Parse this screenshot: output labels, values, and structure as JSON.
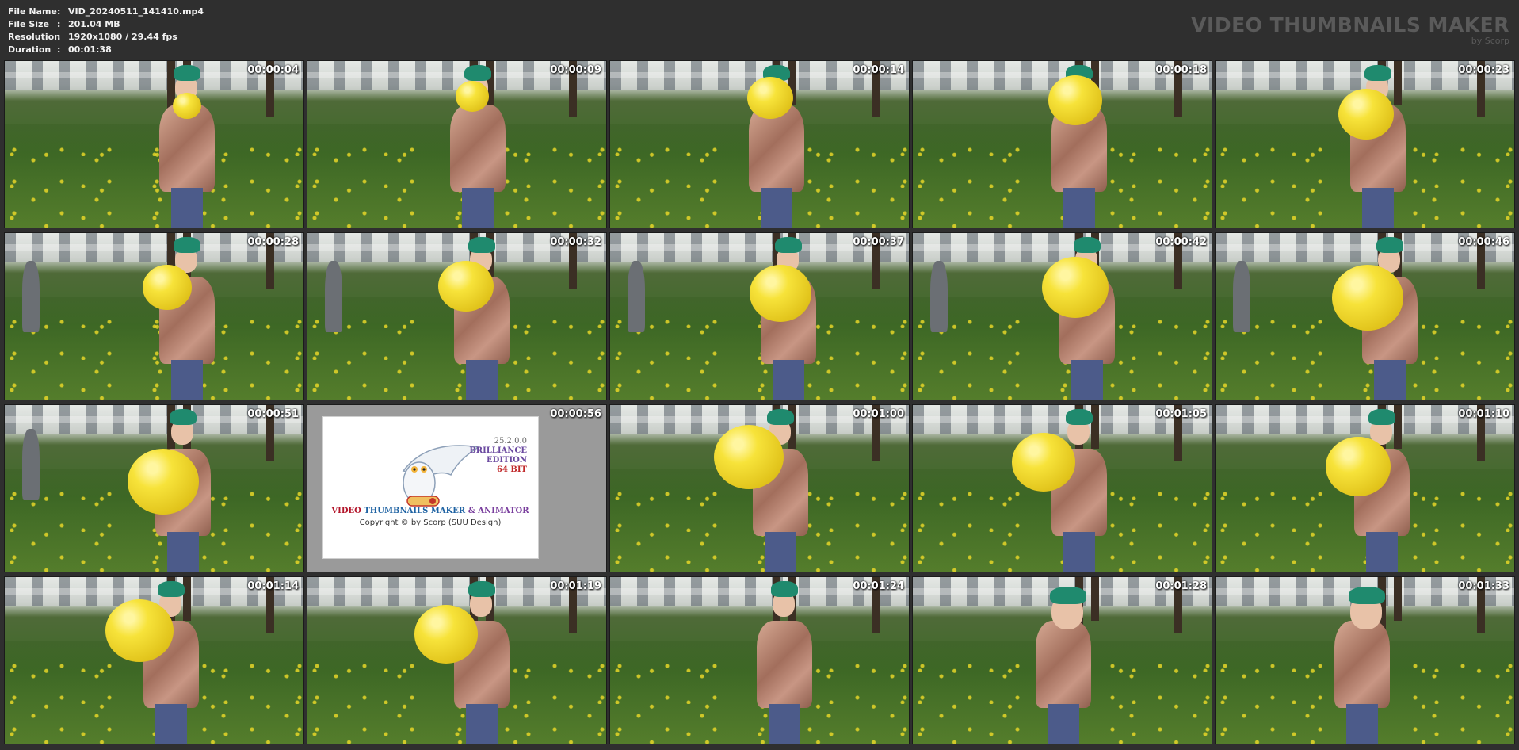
{
  "info": {
    "file_name": {
      "label": "File Name",
      "value": "VID_20240511_141410.mp4"
    },
    "file_size": {
      "label": "File Size",
      "value": "201.04 MB"
    },
    "resolution": {
      "label": "Resolution",
      "value": "1920x1080 / 29.44 fps"
    },
    "duration": {
      "label": "Duration",
      "value": "00:01:38"
    },
    "separator": ":"
  },
  "brand": {
    "title": "VIDEO THUMBNAILS MAKER",
    "subtitle": "by Scorp"
  },
  "timestamps": [
    "00:00:04",
    "00:00:09",
    "00:00:14",
    "00:00:18",
    "00:00:23",
    "00:00:28",
    "00:00:32",
    "00:00:37",
    "00:00:42",
    "00:00:46",
    "00:00:51",
    "00:00:56",
    "00:01:00",
    "00:01:05",
    "00:01:10",
    "00:01:14",
    "00:01:19",
    "00:01:24",
    "00:01:28",
    "00:01:33"
  ],
  "logo": {
    "version": "25.2.0.0",
    "edition_line1": "BRILLIANCE",
    "edition_line2": "EDITION",
    "bits": "64 BIT",
    "title_part1": "VIDEO",
    "title_part2": "THUMBNAILS MAKER",
    "title_part3": "& ANIMATOR",
    "copyright": "Copyright © by Scorp (SUU Design)"
  },
  "colors": {
    "background": "#2f2f2f",
    "text": "#f2f2f2",
    "brand": "#5a5a5a",
    "hat": "#1f8a6e",
    "balloon": "#f7e33a"
  }
}
